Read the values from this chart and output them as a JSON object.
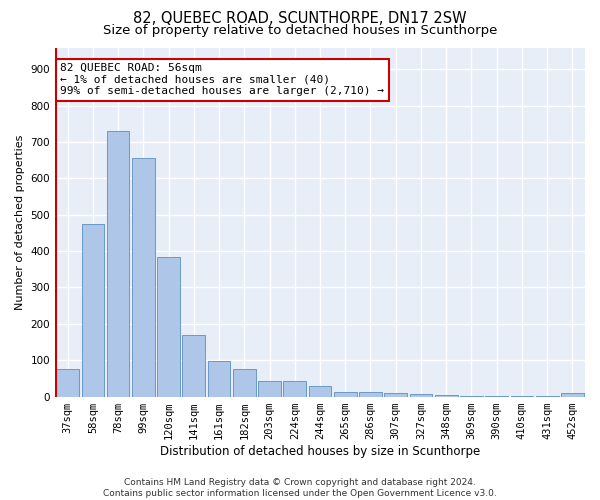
{
  "title": "82, QUEBEC ROAD, SCUNTHORPE, DN17 2SW",
  "subtitle": "Size of property relative to detached houses in Scunthorpe",
  "xlabel": "Distribution of detached houses by size in Scunthorpe",
  "ylabel": "Number of detached properties",
  "categories": [
    "37sqm",
    "58sqm",
    "78sqm",
    "99sqm",
    "120sqm",
    "141sqm",
    "161sqm",
    "182sqm",
    "203sqm",
    "224sqm",
    "244sqm",
    "265sqm",
    "286sqm",
    "307sqm",
    "327sqm",
    "348sqm",
    "369sqm",
    "390sqm",
    "410sqm",
    "431sqm",
    "452sqm"
  ],
  "values": [
    75,
    475,
    730,
    655,
    385,
    170,
    97,
    75,
    42,
    42,
    28,
    12,
    12,
    10,
    8,
    5,
    2,
    1,
    1,
    1,
    10
  ],
  "bar_color": "#aec6e8",
  "bar_edge_color": "#5a8fc2",
  "highlight_line_color": "#cc0000",
  "annotation_text": "82 QUEBEC ROAD: 56sqm\n← 1% of detached houses are smaller (40)\n99% of semi-detached houses are larger (2,710) →",
  "annotation_box_color": "#ffffff",
  "annotation_box_edge_color": "#cc0000",
  "ylim": [
    0,
    960
  ],
  "yticks": [
    0,
    100,
    200,
    300,
    400,
    500,
    600,
    700,
    800,
    900
  ],
  "background_color": "#e8eef8",
  "grid_color": "#ffffff",
  "title_fontsize": 10.5,
  "subtitle_fontsize": 9.5,
  "xlabel_fontsize": 8.5,
  "ylabel_fontsize": 8,
  "tick_fontsize": 7.5,
  "footer_text": "Contains HM Land Registry data © Crown copyright and database right 2024.\nContains public sector information licensed under the Open Government Licence v3.0.",
  "footer_fontsize": 6.5
}
